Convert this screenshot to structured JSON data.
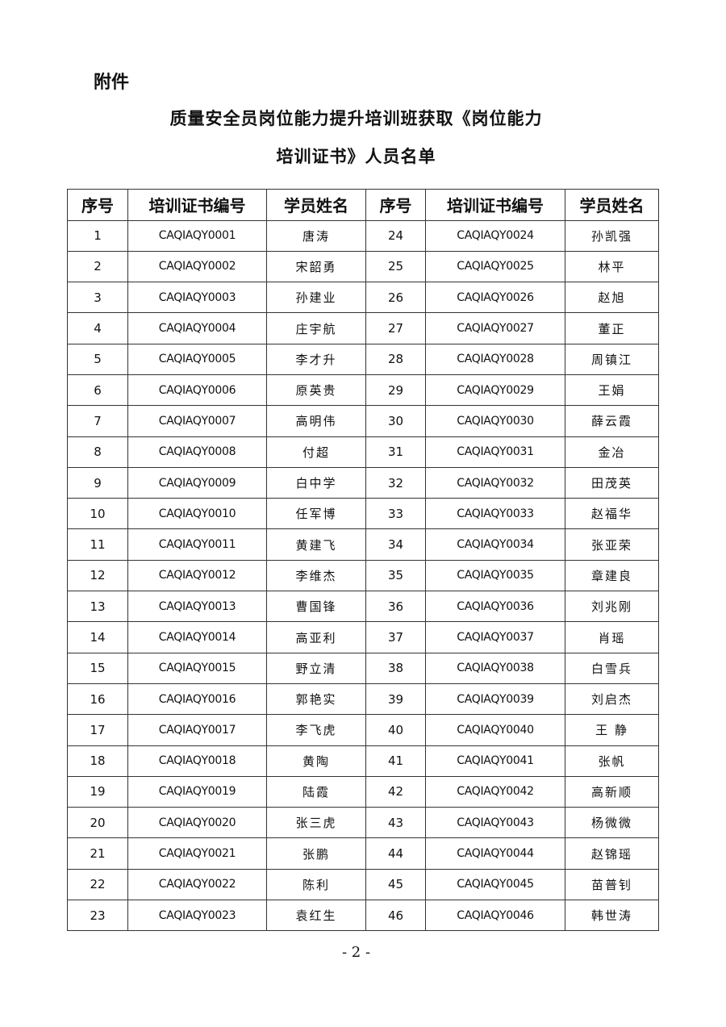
{
  "attachment_label": "附件",
  "title_line1": "质量安全员岗位能力提升培训班获取《岗位能力",
  "title_line2": "培训证书》人员名单",
  "headers": [
    "序号",
    "培训证书编号",
    "学员姓名",
    "序号",
    "培训证书编号",
    "学员姓名"
  ],
  "left": [
    [
      "1",
      "CAQIAQY0001",
      "唐涛"
    ],
    [
      "2",
      "CAQIAQY0002",
      "宋韶勇"
    ],
    [
      "3",
      "CAQIAQY0003",
      "孙建业"
    ],
    [
      "4",
      "CAQIAQY0004",
      "庄宇航"
    ],
    [
      "5",
      "CAQIAQY0005",
      "李才升"
    ],
    [
      "6",
      "CAQIAQY0006",
      "原英贵"
    ],
    [
      "7",
      "CAQIAQY0007",
      "高明伟"
    ],
    [
      "8",
      "CAQIAQY0008",
      "付超"
    ],
    [
      "9",
      "CAQIAQY0009",
      "白中学"
    ],
    [
      "10",
      "CAQIAQY0010",
      "任军博"
    ],
    [
      "11",
      "CAQIAQY0011",
      "黄建飞"
    ],
    [
      "12",
      "CAQIAQY0012",
      "李维杰"
    ],
    [
      "13",
      "CAQIAQY0013",
      "曹国锋"
    ],
    [
      "14",
      "CAQIAQY0014",
      "高亚利"
    ],
    [
      "15",
      "CAQIAQY0015",
      "野立清"
    ],
    [
      "16",
      "CAQIAQY0016",
      "郭艳实"
    ],
    [
      "17",
      "CAQIAQY0017",
      "李飞虎"
    ],
    [
      "18",
      "CAQIAQY0018",
      "黄陶"
    ],
    [
      "19",
      "CAQIAQY0019",
      "陆霞"
    ],
    [
      "20",
      "CAQIAQY0020",
      "张三虎"
    ],
    [
      "21",
      "CAQIAQY0021",
      "张鹏"
    ],
    [
      "22",
      "CAQIAQY0022",
      "陈利"
    ],
    [
      "23",
      "CAQIAQY0023",
      "袁红生"
    ]
  ],
  "right": [
    [
      "24",
      "CAQIAQY0024",
      "孙凯强"
    ],
    [
      "25",
      "CAQIAQY0025",
      "林平"
    ],
    [
      "26",
      "CAQIAQY0026",
      "赵旭"
    ],
    [
      "27",
      "CAQIAQY0027",
      "董正"
    ],
    [
      "28",
      "CAQIAQY0028",
      "周镇江"
    ],
    [
      "29",
      "CAQIAQY0029",
      "王娟"
    ],
    [
      "30",
      "CAQIAQY0030",
      "薛云霞"
    ],
    [
      "31",
      "CAQIAQY0031",
      "金冶"
    ],
    [
      "32",
      "CAQIAQY0032",
      "田茂英"
    ],
    [
      "33",
      "CAQIAQY0033",
      "赵福华"
    ],
    [
      "34",
      "CAQIAQY0034",
      "张亚荣"
    ],
    [
      "35",
      "CAQIAQY0035",
      "章建良"
    ],
    [
      "36",
      "CAQIAQY0036",
      "刘兆刚"
    ],
    [
      "37",
      "CAQIAQY0037",
      "肖瑶"
    ],
    [
      "38",
      "CAQIAQY0038",
      "白雪兵"
    ],
    [
      "39",
      "CAQIAQY0039",
      "刘启杰"
    ],
    [
      "40",
      "CAQIAQY0040",
      "王 静"
    ],
    [
      "41",
      "CAQIAQY0041",
      "张帆"
    ],
    [
      "42",
      "CAQIAQY0042",
      "高新顺"
    ],
    [
      "43",
      "CAQIAQY0043",
      "杨微微"
    ],
    [
      "44",
      "CAQIAQY0044",
      "赵锦瑶"
    ],
    [
      "45",
      "CAQIAQY0045",
      "苗普钊"
    ],
    [
      "46",
      "CAQIAQY0046",
      "韩世涛"
    ]
  ],
  "page_number": "- 2 -"
}
